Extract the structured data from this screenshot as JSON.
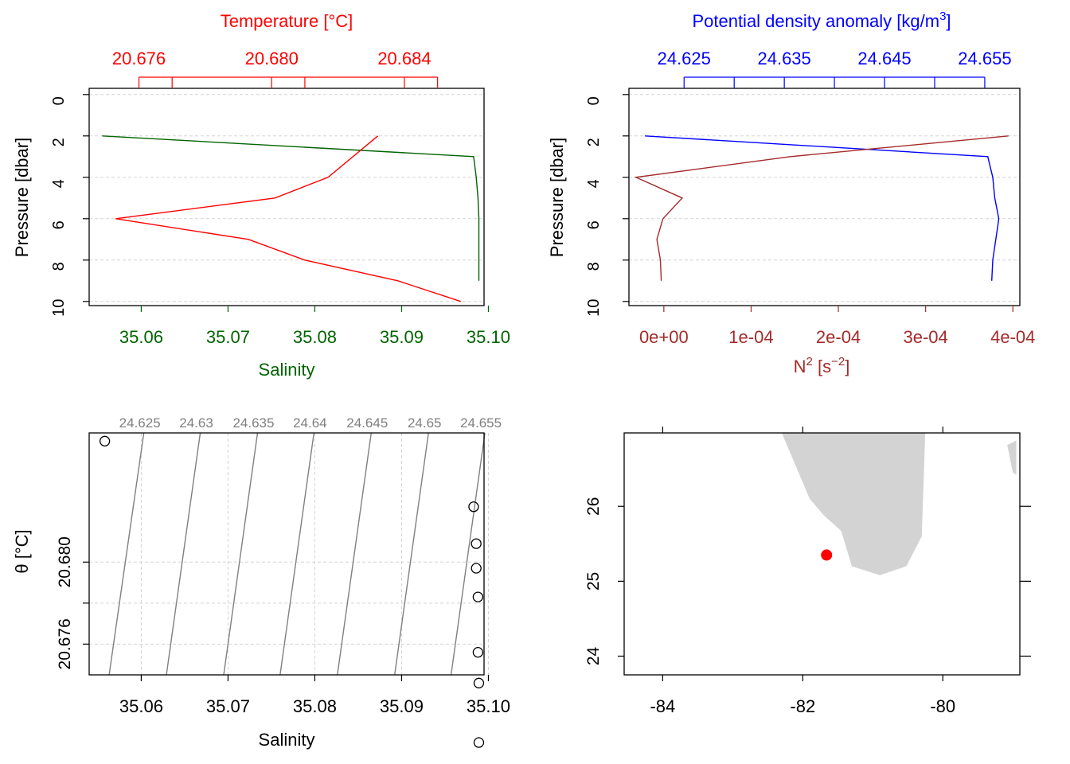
{
  "chart_data": [
    {
      "type": "line",
      "title": "",
      "top_axis_label": "Temperature [°C]",
      "top_axis_ticks": [
        "20.676",
        "20.680",
        "20.684"
      ],
      "top_axis_minor": [
        20.677,
        20.681,
        20.685
      ],
      "top_axis_range": [
        20.6745,
        20.6864
      ],
      "xlabel": "Salinity",
      "x_ticks": [
        "35.06",
        "35.07",
        "35.08",
        "35.09",
        "35.10"
      ],
      "xlim": [
        35.054,
        35.0995
      ],
      "ylabel": "Pressure [dbar]",
      "y_ticks": [
        "0",
        "2",
        "4",
        "6",
        "8",
        "10"
      ],
      "ylim": [
        10.2,
        -0.3
      ],
      "grid": true,
      "series": [
        {
          "axis": "bottom",
          "color": "#006400",
          "x": [
            35.0555,
            35.0983,
            35.0986,
            35.0988,
            35.0989,
            35.0989,
            35.0989,
            35.0989
          ],
          "y": [
            2,
            3,
            4,
            5,
            6,
            7,
            8,
            9
          ]
        },
        {
          "axis": "top",
          "color": "#ff0000",
          "x": [
            20.6832,
            20.6817,
            20.6801,
            20.6753,
            20.6793,
            20.681,
            20.6838,
            20.6857
          ],
          "y": [
            2,
            4,
            5,
            6,
            7,
            8,
            9,
            10
          ]
        }
      ]
    },
    {
      "type": "line",
      "title": "",
      "top_axis_label": "Potential density anomaly [kg/m",
      "top_axis_label_sup": "3",
      "top_axis_label_end": "]",
      "top_axis_ticks": [
        "24.625",
        "24.635",
        "24.645",
        "24.655"
      ],
      "top_axis_minor": [
        24.63,
        24.64,
        24.65
      ],
      "top_axis_range": [
        24.6195,
        24.6585
      ],
      "xlabel_main": "N",
      "xlabel_sup": "2",
      "xlabel_unit_open": " [s",
      "xlabel_unit_sup": "−2",
      "xlabel_unit_close": "]",
      "x_ticks": [
        "0e+00",
        "1e-04",
        "2e-04",
        "3e-04",
        "4e-04"
      ],
      "xlim": [
        -4e-05,
        0.000408
      ],
      "ylabel": "Pressure [dbar]",
      "y_ticks": [
        "0",
        "2",
        "4",
        "6",
        "8",
        "10"
      ],
      "ylim": [
        10.2,
        -0.3
      ],
      "grid": true,
      "series": [
        {
          "axis": "top",
          "color": "#0000ff",
          "x": [
            24.6211,
            24.6553,
            24.6558,
            24.656,
            24.6564,
            24.6561,
            24.6558,
            24.6557
          ],
          "y": [
            2,
            3,
            4,
            5,
            6,
            7,
            8,
            9
          ]
        },
        {
          "axis": "bottom",
          "color": "#a52a2a",
          "x": [
            0.000395,
            0.000145,
            -3.2e-05,
            2.1e-05,
            -1e-06,
            -8e-06,
            -4e-06,
            -3e-06
          ],
          "y": [
            2,
            3,
            4,
            5,
            6,
            7,
            8,
            9
          ]
        }
      ]
    },
    {
      "type": "scatter",
      "title": "",
      "xlabel": "Salinity",
      "ylabel": "θ [°C]",
      "x_ticks": [
        "35.06",
        "35.07",
        "35.08",
        "35.09",
        "35.10"
      ],
      "xlim": [
        35.054,
        35.0995
      ],
      "y_ticks": [
        "20.676",
        "20.680"
      ],
      "y_minor": [
        20.678
      ],
      "ylim": [
        20.6745,
        20.6863
      ],
      "grid": true,
      "isopycnal_labels": [
        "24.625",
        "24.63",
        "24.635",
        "24.64",
        "24.645",
        "24.65",
        "24.655"
      ],
      "isopycnal_bottom_salinity": [
        35.0563,
        35.0629,
        35.0695,
        35.076,
        35.0826,
        35.0892,
        35.0957
      ],
      "isopycnal_top_salinity": [
        35.0603,
        35.0668,
        35.0734,
        35.0799,
        35.0865,
        35.0931,
        35.0996
      ],
      "points": {
        "salinity": [
          35.0558,
          35.0983,
          35.0986,
          35.0986,
          35.0988,
          35.0988,
          35.0989,
          35.0989
        ],
        "theta": [
          20.6859,
          20.6827,
          20.6809,
          20.6797,
          20.6783,
          20.6756,
          20.6741,
          20.6712
        ]
      }
    },
    {
      "type": "map",
      "title": "",
      "x_ticks": [
        "-84",
        "-82",
        "-80"
      ],
      "y_ticks": [
        "24",
        "25",
        "26"
      ],
      "xlim": [
        -84.55,
        -78.9
      ],
      "ylim": [
        23.75,
        26.98
      ],
      "land_color": "#d3d3d3",
      "station_color": "#ff0000",
      "station": {
        "lon": -81.66,
        "lat": 25.35
      },
      "land_polygons": [
        [
          [
            -82.3,
            26.98
          ],
          [
            -81.9,
            26.1
          ],
          [
            -81.7,
            25.88
          ],
          [
            -81.45,
            25.67
          ],
          [
            -81.3,
            25.2
          ],
          [
            -80.9,
            25.08
          ],
          [
            -80.52,
            25.2
          ],
          [
            -80.3,
            25.6
          ],
          [
            -80.25,
            26.98
          ]
        ],
        [
          [
            -79.08,
            26.82
          ],
          [
            -78.95,
            26.88
          ],
          [
            -78.95,
            26.42
          ],
          [
            -79.0,
            26.45
          ]
        ]
      ]
    }
  ]
}
